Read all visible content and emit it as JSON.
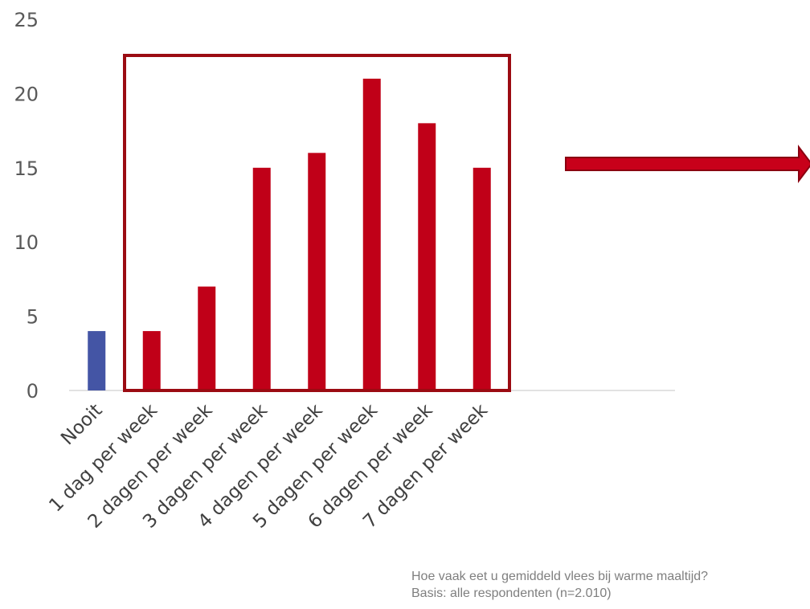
{
  "chart_data": {
    "type": "bar",
    "categories": [
      "Nooit",
      "1 dag per week",
      "2 dagen per week",
      "3 dagen per week",
      "4 dagen per week",
      "5 dagen per week",
      "6 dagen per week",
      "7 dagen per week"
    ],
    "values": [
      4,
      4,
      7,
      15,
      16,
      21,
      18,
      15
    ],
    "ylim": [
      0,
      25
    ],
    "yticks": [
      0,
      5,
      10,
      15,
      20,
      25
    ],
    "grid": false,
    "colors": {
      "first_bar": "#4455a5",
      "bars": "#c00018",
      "highlight_box": "#9b0b12",
      "arrow": "#c8001a",
      "axis": "#d9d9d9"
    },
    "annotations": {
      "highlight_box": "1 dag per week – 7 dagen per week",
      "arrow": "right"
    }
  },
  "footnote": {
    "question": "Hoe vaak eet u gemiddeld vlees bij warme maaltijd?",
    "base": "Basis: alle respondenten (n=2.010)"
  }
}
